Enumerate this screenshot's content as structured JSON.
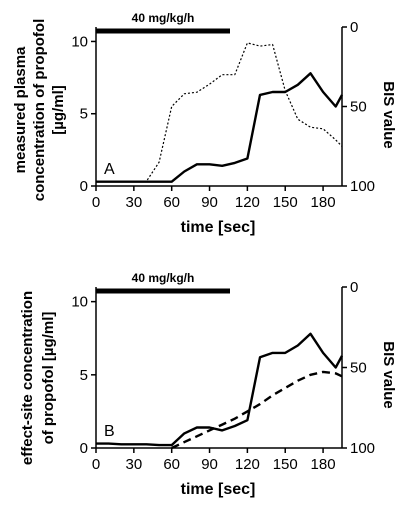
{
  "chart_data": [
    {
      "type": "line",
      "panel_label": "A",
      "infusion_label": "40 mg/kg/h",
      "infusion_start_sec": 0,
      "infusion_end_sec": 108,
      "xlabel": "time [sec]",
      "ylabel_line1": "measured plasma",
      "ylabel_line2": "concentration of propofol",
      "ylabel_line3": "[µg/ml]",
      "y2label": "BIS value",
      "xlim": [
        0,
        195
      ],
      "ylim": [
        0,
        11
      ],
      "y2lim": [
        100,
        0
      ],
      "x_ticks": [
        "0",
        "30",
        "60",
        "90",
        "120",
        "150",
        "180"
      ],
      "y_ticks": [
        "0",
        "5",
        "10"
      ],
      "y2_ticks": [
        "0",
        "50",
        "100"
      ],
      "series": [
        {
          "axis": "left",
          "style": "solid",
          "x": [
            0,
            10,
            20,
            30,
            40,
            50,
            60,
            70,
            80,
            90,
            100,
            110,
            120,
            130,
            140,
            150,
            160,
            170,
            180,
            190,
            195
          ],
          "y": [
            0.3,
            0.3,
            0.3,
            0.3,
            0.3,
            0.3,
            0.3,
            1.0,
            1.5,
            1.5,
            1.4,
            1.6,
            1.9,
            6.3,
            6.5,
            6.5,
            7.0,
            7.8,
            6.5,
            5.5,
            6.3
          ]
        },
        {
          "axis": "right",
          "style": "dotted",
          "x": [
            0,
            10,
            20,
            30,
            40,
            50,
            60,
            70,
            80,
            90,
            100,
            110,
            120,
            130,
            140,
            150,
            160,
            170,
            180,
            190,
            195
          ],
          "y": [
            97,
            97,
            97,
            97,
            97,
            85,
            50,
            42,
            41,
            36,
            30,
            30,
            10,
            12,
            11,
            40,
            58,
            63,
            64,
            71,
            75
          ]
        }
      ]
    },
    {
      "type": "line",
      "panel_label": "B",
      "infusion_label": "40 mg/kg/h",
      "infusion_start_sec": 0,
      "infusion_end_sec": 108,
      "xlabel": "time [sec]",
      "ylabel_line1": "effect-site concentration",
      "ylabel_line2": "of propofol [µg/ml]",
      "y2label": "BIS value",
      "xlim": [
        0,
        195
      ],
      "ylim": [
        0,
        11
      ],
      "y2lim": [
        100,
        0
      ],
      "x_ticks": [
        "0",
        "30",
        "60",
        "90",
        "120",
        "150",
        "180"
      ],
      "y_ticks": [
        "0",
        "5",
        "10"
      ],
      "y2_ticks": [
        "0",
        "50",
        "100"
      ],
      "series": [
        {
          "axis": "left",
          "style": "solid",
          "x": [
            0,
            10,
            20,
            30,
            40,
            50,
            60,
            70,
            80,
            90,
            100,
            110,
            120,
            130,
            140,
            150,
            160,
            170,
            180,
            190,
            195
          ],
          "y": [
            0.3,
            0.3,
            0.25,
            0.25,
            0.25,
            0.2,
            0.2,
            1.0,
            1.4,
            1.4,
            1.2,
            1.5,
            1.9,
            6.2,
            6.5,
            6.5,
            7.0,
            7.8,
            6.5,
            5.5,
            6.3
          ]
        },
        {
          "axis": "left",
          "style": "dashed",
          "x": [
            60,
            70,
            80,
            90,
            100,
            110,
            120,
            130,
            140,
            150,
            160,
            170,
            180,
            190,
            195
          ],
          "y": [
            0.0,
            0.4,
            0.8,
            1.2,
            1.6,
            2.0,
            2.5,
            3.0,
            3.6,
            4.1,
            4.6,
            5.0,
            5.2,
            5.1,
            4.9
          ]
        }
      ]
    }
  ]
}
